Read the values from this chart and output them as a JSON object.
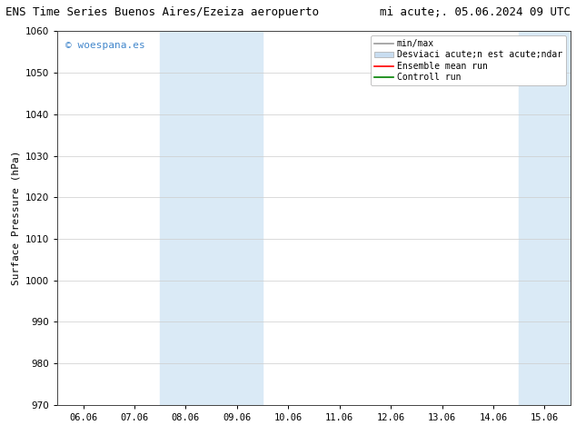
{
  "title_left": "ENS Time Series Buenos Aires/Ezeiza aeropuerto",
  "title_right": "mi acute;. 05.06.2024 09 UTC",
  "ylabel": "Surface Pressure (hPa)",
  "ylim": [
    970,
    1060
  ],
  "yticks": [
    970,
    980,
    990,
    1000,
    1010,
    1020,
    1030,
    1040,
    1050,
    1060
  ],
  "xtick_labels": [
    "06.06",
    "07.06",
    "08.06",
    "09.06",
    "10.06",
    "11.06",
    "12.06",
    "13.06",
    "14.06",
    "15.06"
  ],
  "num_xticks": 10,
  "shaded_regions": [
    {
      "xmin": 2,
      "xmax": 4
    },
    {
      "xmin": 9,
      "xmax": 10
    }
  ],
  "shade_color": "#daeaf6",
  "watermark": "© woespana.es",
  "watermark_color": "#4488cc",
  "bg_color": "#ffffff",
  "grid_color": "#cccccc",
  "legend_entries": [
    {
      "label": "min/max",
      "color": "#999999",
      "lw": 1.2,
      "type": "line"
    },
    {
      "label": "Desviaci acute;n est acute;ndar",
      "color": "#c8ddf0",
      "type": "patch"
    },
    {
      "label": "Ensemble mean run",
      "color": "#ff0000",
      "lw": 1.2,
      "type": "line"
    },
    {
      "label": "Controll run",
      "color": "#008000",
      "lw": 1.2,
      "type": "line"
    }
  ],
  "title_fontsize": 9,
  "ylabel_fontsize": 8,
  "tick_fontsize": 7.5,
  "watermark_fontsize": 8,
  "legend_fontsize": 7
}
